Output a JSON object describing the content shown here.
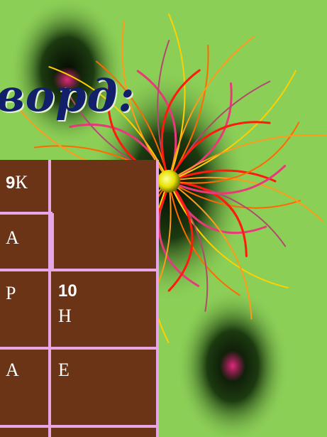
{
  "slide": {
    "title_fragment": "ворд:"
  },
  "crossword": {
    "cells": [
      {
        "number": "9",
        "letter": "К"
      },
      {
        "number": "",
        "letter": "А"
      },
      {
        "number": "",
        "letter": "Р"
      },
      {
        "number": "",
        "letter": "А"
      },
      {
        "number": "10",
        "letter": "Н"
      },
      {
        "number": "",
        "letter": "Е"
      }
    ]
  },
  "colors": {
    "background": "#8ccf57",
    "grid_fill": "#6b3416",
    "grid_lines": "#e7a7e6",
    "title": "#12206b"
  }
}
